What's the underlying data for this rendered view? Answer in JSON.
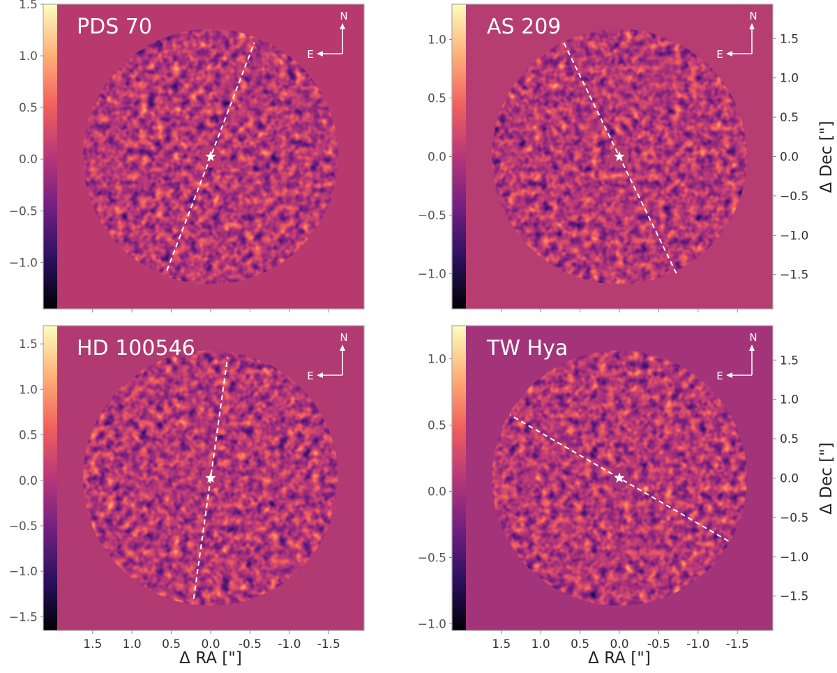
{
  "figure": {
    "xlabel": "Δ RA [\"]",
    "ylabel": "Δ Dec [\"]",
    "compass": {
      "north_label": "N",
      "east_label": "E"
    },
    "ra_ticks": [
      "1.5",
      "1.0",
      "0.5",
      "0.0",
      "-0.5",
      "-1.0",
      "-1.5"
    ],
    "dec_ticks": [
      "1.5",
      "1.0",
      "0.5",
      "0.0",
      "−0.5",
      "−1.0",
      "−1.5"
    ],
    "colormap": [
      "#000004",
      "#2c115f",
      "#721f81",
      "#b73779",
      "#f1605d",
      "#feb078",
      "#fcfdbf"
    ]
  },
  "chart_data": [
    {
      "type": "heatmap",
      "title": "PDS 70",
      "xlabel": "",
      "ylabel": "",
      "colorbar": {
        "range": [
          -1.45,
          1.5
        ],
        "tick_values": [
          1.5,
          1.0,
          0.5,
          0.0,
          -0.5,
          -1.0
        ],
        "tick_labels": [
          "1.5",
          "1.0",
          "0.5",
          "0.0",
          "−0.5",
          "−1.0"
        ]
      },
      "axis_range_arcsec": [
        -1.95,
        1.95
      ],
      "major_axis_pa_deg": 159,
      "major_axis_halflength_arcsec": 1.55,
      "show_dec_axis": false,
      "show_ra_axis": false
    },
    {
      "type": "heatmap",
      "title": "AS 209",
      "xlabel": "",
      "ylabel": "Δ Dec [\"]",
      "colorbar": {
        "range": [
          -1.3,
          1.3
        ],
        "tick_values": [
          1.0,
          0.5,
          0.0,
          -0.5,
          -1.0
        ],
        "tick_labels": [
          "1.0",
          "0.5",
          "0.0",
          "−0.5",
          "−1.0"
        ]
      },
      "axis_range_arcsec": [
        -1.95,
        1.95
      ],
      "major_axis_pa_deg": 206,
      "major_axis_halflength_arcsec": 1.65,
      "show_dec_axis": true,
      "show_ra_axis": false
    },
    {
      "type": "heatmap",
      "title": "HD 100546",
      "xlabel": "Δ RA [\"]",
      "ylabel": "",
      "colorbar": {
        "range": [
          -1.65,
          1.7
        ],
        "tick_values": [
          1.5,
          1.0,
          0.5,
          0.0,
          -0.5,
          -1.0,
          -1.5
        ],
        "tick_labels": [
          "1.5",
          "1.0",
          "0.5",
          "0.0",
          "−0.5",
          "−1.0",
          "−1.5"
        ]
      },
      "axis_range_arcsec": [
        -1.95,
        1.95
      ],
      "major_axis_pa_deg": 172,
      "major_axis_halflength_arcsec": 1.55,
      "show_dec_axis": false,
      "show_ra_axis": true
    },
    {
      "type": "heatmap",
      "title": "TW Hya",
      "xlabel": "Δ RA [\"]",
      "ylabel": "Δ Dec [\"]",
      "colorbar": {
        "range": [
          -1.05,
          1.25
        ],
        "tick_values": [
          1.0,
          0.5,
          0.0,
          -0.5,
          -1.0
        ],
        "tick_labels": [
          "1.0",
          "0.5",
          "0.0",
          "−0.5",
          "−1.0"
        ]
      },
      "axis_range_arcsec": [
        -1.95,
        1.95
      ],
      "major_axis_pa_deg": 240,
      "major_axis_halflength_arcsec": 1.6,
      "show_dec_axis": true,
      "show_ra_axis": true
    }
  ]
}
